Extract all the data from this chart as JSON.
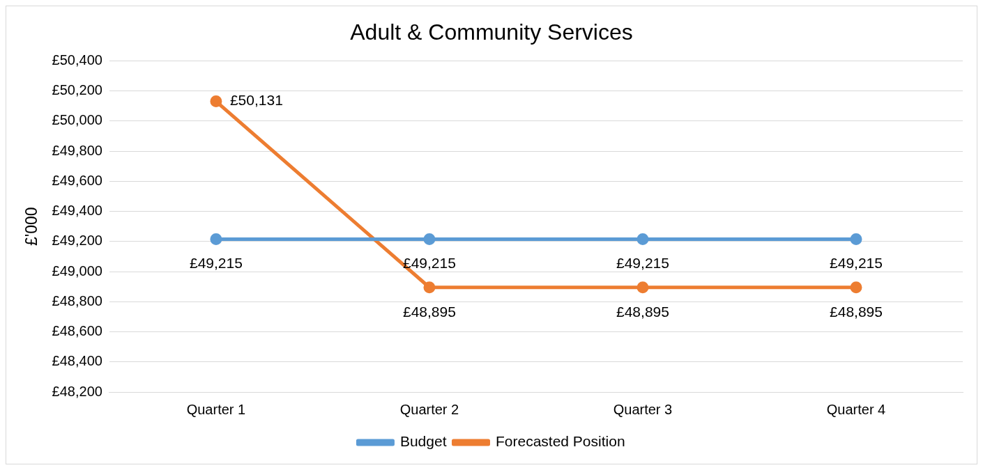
{
  "chart_data": {
    "type": "line",
    "title": "Adult & Community Services",
    "ylabel": "£'000",
    "categories": [
      "Quarter 1",
      "Quarter 2",
      "Quarter 3",
      "Quarter 4"
    ],
    "series": [
      {
        "name": "Budget",
        "color": "#5b9bd5",
        "values": [
          49215,
          49215,
          49215,
          49215
        ],
        "value_labels": [
          "£49,215",
          "£49,215",
          "£49,215",
          "£49,215"
        ]
      },
      {
        "name": "Forecasted Position",
        "color": "#ed7d31",
        "values": [
          50131,
          48895,
          48895,
          48895
        ],
        "value_labels": [
          "£50,131",
          "£48,895",
          "£48,895",
          "£48,895"
        ]
      }
    ],
    "ylim": [
      48200,
      50400
    ],
    "yticks": [
      {
        "value": 48200,
        "label": "£48,200"
      },
      {
        "value": 48400,
        "label": "£48,400"
      },
      {
        "value": 48600,
        "label": "£48,600"
      },
      {
        "value": 48800,
        "label": "£48,800"
      },
      {
        "value": 49000,
        "label": "£49,000"
      },
      {
        "value": 49200,
        "label": "£49,200"
      },
      {
        "value": 49400,
        "label": "£49,400"
      },
      {
        "value": 49600,
        "label": "£49,600"
      },
      {
        "value": 49800,
        "label": "£49,800"
      },
      {
        "value": 50000,
        "label": "£50,000"
      },
      {
        "value": 50200,
        "label": "£50,200"
      },
      {
        "value": 50400,
        "label": "£50,400"
      }
    ],
    "grid": "y",
    "legend": "bottom",
    "marker": "circle",
    "line_style": "solid"
  }
}
